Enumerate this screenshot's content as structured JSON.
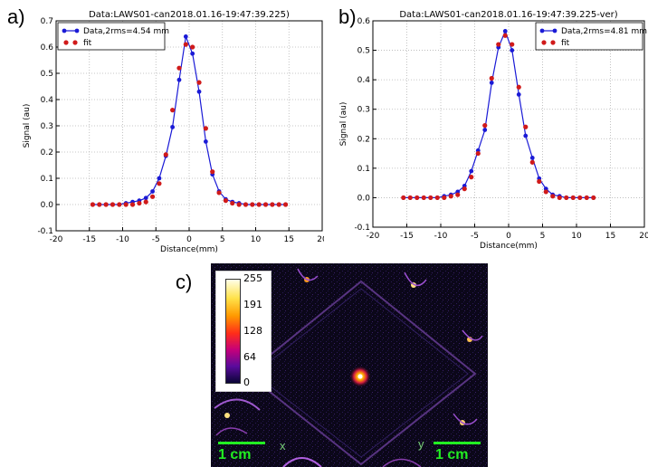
{
  "labels": {
    "a": "a)",
    "b": "b)",
    "c": "c)"
  },
  "chart_data": [
    {
      "type": "line",
      "title": "Data:LAWS01-can2018.01.16-19:47:39.225)",
      "xlabel": "Distance(mm)",
      "ylabel": "Signal (au)",
      "xlim": [
        -20,
        20
      ],
      "ylim": [
        -0.1,
        0.7
      ],
      "xticks": [
        -20,
        -15,
        -10,
        -5,
        0,
        5,
        10,
        15,
        20
      ],
      "yticks": [
        -0.1,
        0.0,
        0.1,
        0.2,
        0.3,
        0.4,
        0.5,
        0.6,
        0.7
      ],
      "grid": true,
      "legend_position": "top-left",
      "colors": {
        "data": "#1a1ad6",
        "fit": "#d01a1a"
      },
      "series": [
        {
          "name": "Data,2rms=4.54 mm",
          "style": "line-dots",
          "x": [
            -14.5,
            -13.5,
            -12.5,
            -11.5,
            -10.5,
            -9.5,
            -8.5,
            -7.5,
            -6.5,
            -5.5,
            -4.5,
            -3.5,
            -2.5,
            -1.5,
            -0.5,
            0.5,
            1.5,
            2.5,
            3.5,
            4.5,
            5.5,
            6.5,
            7.5,
            8.5,
            9.5,
            10.5,
            11.5,
            12.5,
            13.5,
            14.5
          ],
          "y": [
            0.0,
            0.0,
            0.0,
            0.0,
            0.0,
            0.005,
            0.01,
            0.015,
            0.025,
            0.05,
            0.1,
            0.185,
            0.295,
            0.475,
            0.64,
            0.575,
            0.43,
            0.24,
            0.115,
            0.05,
            0.02,
            0.01,
            0.005,
            0.0,
            0.0,
            0.0,
            0.0,
            0.0,
            0.0,
            0.0
          ]
        },
        {
          "name": "fit",
          "style": "dots",
          "x": [
            -14.5,
            -13.5,
            -12.5,
            -11.5,
            -10.5,
            -9.5,
            -8.5,
            -7.5,
            -6.5,
            -5.5,
            -4.5,
            -3.5,
            -2.5,
            -1.5,
            -0.5,
            0.5,
            1.5,
            2.5,
            3.5,
            4.5,
            5.5,
            6.5,
            7.5,
            8.5,
            9.5,
            10.5,
            11.5,
            12.5,
            13.5,
            14.5
          ],
          "y": [
            0.0,
            0.0,
            0.0,
            0.0,
            0.0,
            0.0,
            0.0,
            0.005,
            0.01,
            0.03,
            0.08,
            0.19,
            0.36,
            0.52,
            0.61,
            0.6,
            0.465,
            0.29,
            0.125,
            0.045,
            0.015,
            0.005,
            0.0,
            0.0,
            0.0,
            0.0,
            0.0,
            0.0,
            0.0,
            0.0
          ]
        }
      ]
    },
    {
      "type": "line",
      "title": "Data:LAWS01-can2018.01.16-19:47:39.225-ver)",
      "xlabel": "Distance(mm)",
      "ylabel": "Signal (au)",
      "xlim": [
        -20,
        20
      ],
      "ylim": [
        -0.1,
        0.6
      ],
      "xticks": [
        -20,
        -15,
        -10,
        -5,
        0,
        5,
        10,
        15,
        20
      ],
      "yticks": [
        -0.1,
        0.0,
        0.1,
        0.2,
        0.3,
        0.4,
        0.5,
        0.6
      ],
      "grid": true,
      "legend_position": "top-right",
      "colors": {
        "data": "#1a1ad6",
        "fit": "#d01a1a"
      },
      "series": [
        {
          "name": "Data,2rms=4.81 mm",
          "style": "line-dots",
          "x": [
            -15.5,
            -14.5,
            -13.5,
            -12.5,
            -11.5,
            -10.5,
            -9.5,
            -8.5,
            -7.5,
            -6.5,
            -5.5,
            -4.5,
            -3.5,
            -2.5,
            -1.5,
            -0.5,
            0.5,
            1.5,
            2.5,
            3.5,
            4.5,
            5.5,
            6.5,
            7.5,
            8.5,
            9.5,
            10.5,
            11.5,
            12.5
          ],
          "y": [
            0.0,
            0.0,
            0.0,
            0.0,
            0.0,
            0.0,
            0.005,
            0.01,
            0.02,
            0.04,
            0.09,
            0.16,
            0.23,
            0.39,
            0.51,
            0.565,
            0.5,
            0.35,
            0.21,
            0.135,
            0.065,
            0.03,
            0.01,
            0.005,
            0.0,
            0.0,
            0.0,
            0.0,
            0.0
          ]
        },
        {
          "name": "fit",
          "style": "dots",
          "x": [
            -15.5,
            -14.5,
            -13.5,
            -12.5,
            -11.5,
            -10.5,
            -9.5,
            -8.5,
            -7.5,
            -6.5,
            -5.5,
            -4.5,
            -3.5,
            -2.5,
            -1.5,
            -0.5,
            0.5,
            1.5,
            2.5,
            3.5,
            4.5,
            5.5,
            6.5,
            7.5,
            8.5,
            9.5,
            10.5,
            11.5,
            12.5
          ],
          "y": [
            0.0,
            0.0,
            0.0,
            0.0,
            0.0,
            0.0,
            0.0,
            0.005,
            0.01,
            0.03,
            0.07,
            0.15,
            0.245,
            0.405,
            0.52,
            0.55,
            0.52,
            0.375,
            0.24,
            0.12,
            0.055,
            0.02,
            0.005,
            0.0,
            0.0,
            0.0,
            0.0,
            0.0,
            0.0
          ]
        }
      ]
    }
  ],
  "image_c": {
    "colorbar_ticks": [
      "255",
      "191",
      "128",
      "64",
      "0"
    ],
    "scale_left": "1 cm",
    "scale_right": "1 cm",
    "axis_x": "x",
    "axis_y": "y"
  }
}
